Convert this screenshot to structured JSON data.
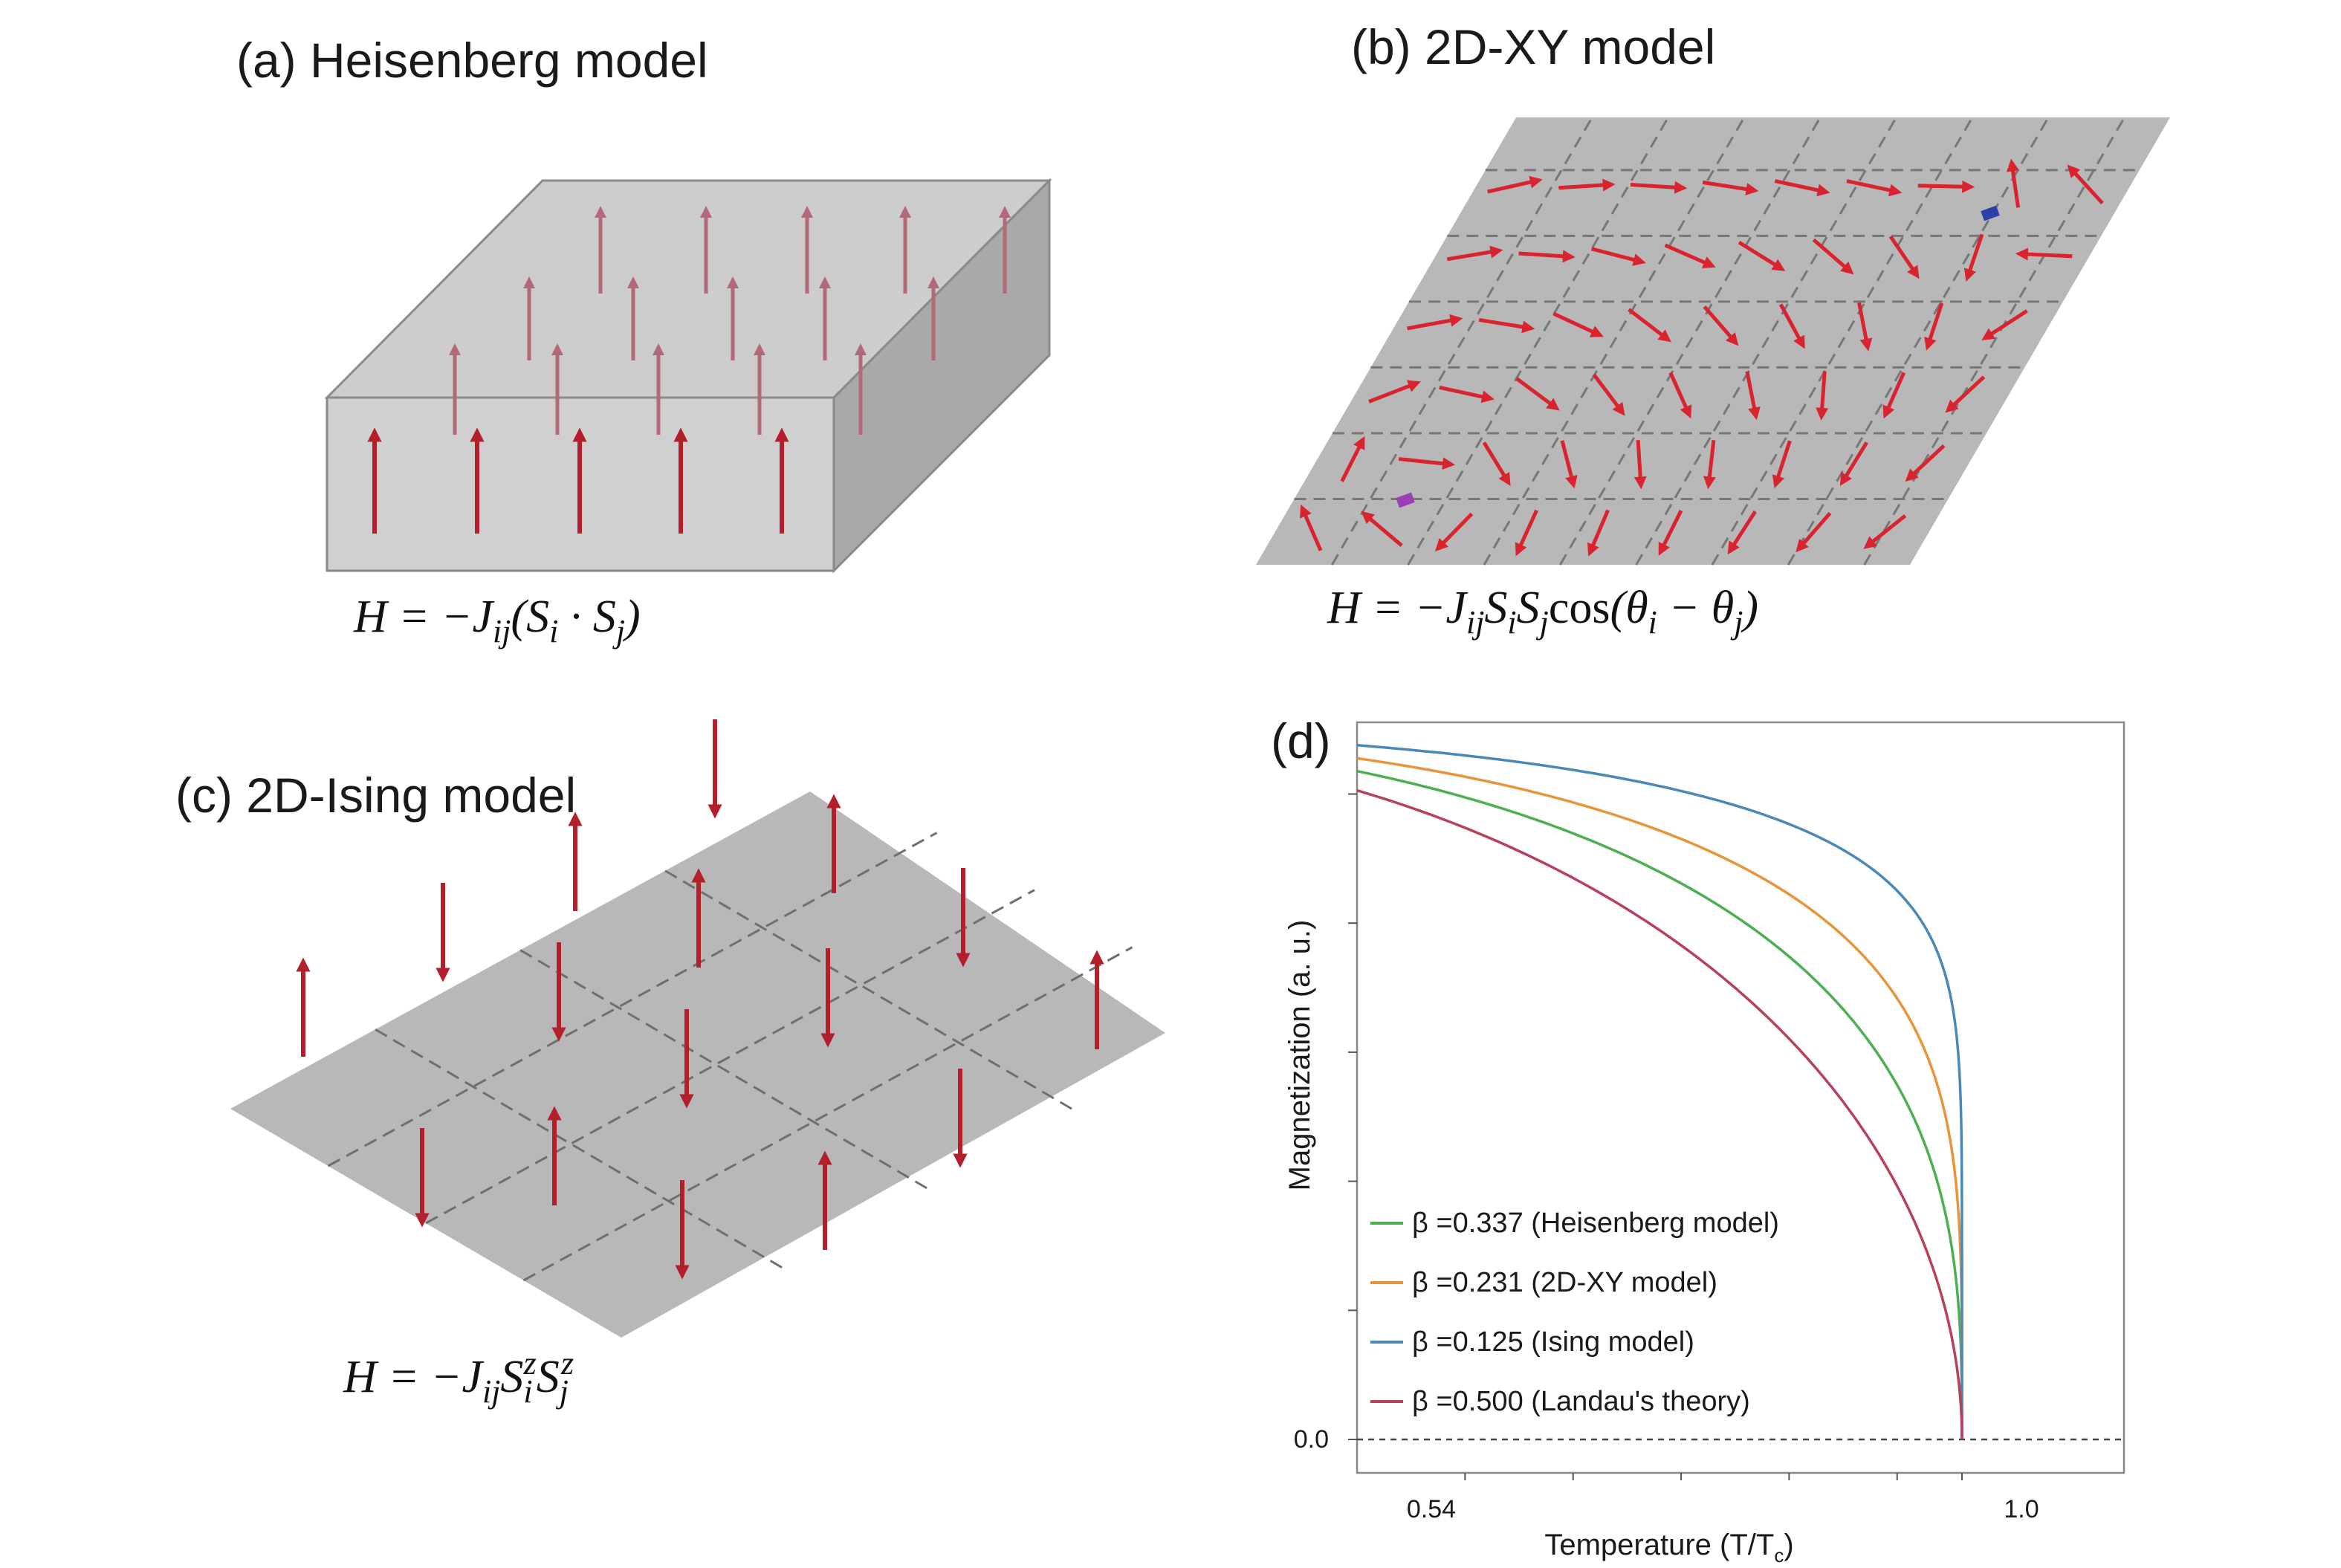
{
  "panels": {
    "a": {
      "title": "(a) Heisenberg model",
      "equation": "H = −J_ij(S⃗_i · S⃗_j)"
    },
    "b": {
      "title": "(b) 2D-XY model",
      "equation": "H = −J_ij S_i S_j cos(θ_i − θ_j)"
    },
    "c": {
      "title": "(c) 2D-Ising model",
      "equation": "H = −J_ij S_i^z S_j^z"
    },
    "d": {
      "title": "(d)"
    }
  },
  "colors": {
    "arrow": "#b3202b",
    "arrow_top": "#b36a78",
    "xy_arrow": "#d9232e",
    "block_front": "#d0d0d0",
    "block_top": "#cdcdcd",
    "block_side": "#a9a9a9",
    "plane": "#b8b8b8",
    "vortex": "#9a3fb6",
    "antivortex": "#2e3fa8"
  },
  "chart_data": {
    "type": "line",
    "title": "",
    "xlabel": "Temperature (T/T",
    "xlabel_sub": "c",
    "xlabel_close": ")",
    "ylabel": "Magnetization (a. u.)",
    "x_ticks": [
      "0.54",
      "1.0"
    ],
    "y_ticks": [
      "0.0"
    ],
    "xlim": [
      0.44,
      1.15
    ],
    "ylim": [
      0,
      1.0
    ],
    "series": [
      {
        "name": "β =0.337  (Heisenberg model)",
        "beta": 0.337,
        "color": "#4caf50"
      },
      {
        "name": "β =0.231  (2D-XY model)",
        "beta": 0.231,
        "color": "#e8953a"
      },
      {
        "name": "β =0.125  (Ising model)",
        "beta": 0.125,
        "color": "#4a88b8"
      },
      {
        "name": "β =0.500  (Landau's theory)",
        "beta": 0.5,
        "color": "#b8405a"
      }
    ],
    "x": [
      0.44,
      0.5,
      0.54,
      0.6,
      0.65,
      0.7,
      0.75,
      0.8,
      0.85,
      0.9,
      0.93,
      0.95,
      0.97,
      0.98,
      0.99,
      0.995,
      1.0
    ],
    "dashed_zero_line": true
  }
}
